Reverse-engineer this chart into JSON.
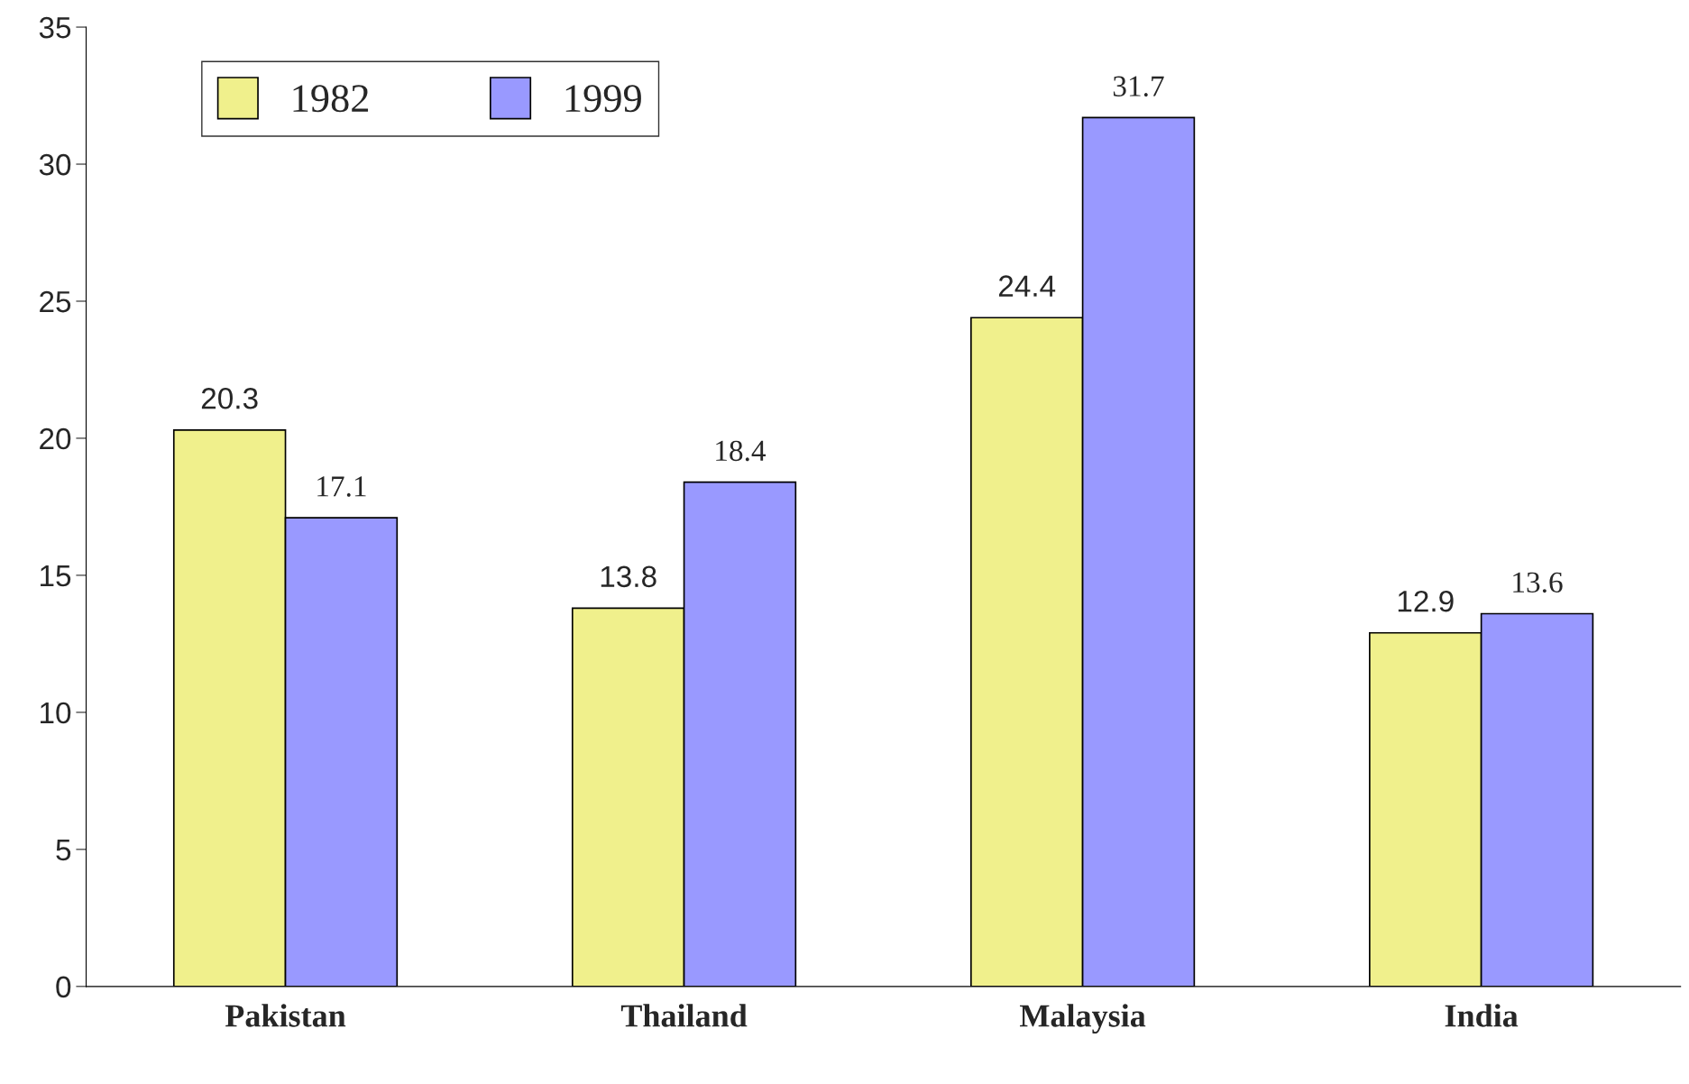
{
  "chart_data": {
    "type": "bar",
    "categories": [
      "Pakistan",
      "Thailand",
      "Malaysia",
      "India"
    ],
    "series": [
      {
        "name": "1982",
        "color": "#f0f08c",
        "values": [
          20.3,
          13.8,
          24.4,
          12.9
        ]
      },
      {
        "name": "1999",
        "color": "#9999ff",
        "values": [
          17.1,
          18.4,
          31.7,
          13.6
        ]
      }
    ],
    "ylim": [
      0,
      35
    ],
    "yticks": [
      0,
      5,
      10,
      15,
      20,
      25,
      30,
      35
    ],
    "data_labels": true,
    "grid": false,
    "legend": "top left"
  }
}
